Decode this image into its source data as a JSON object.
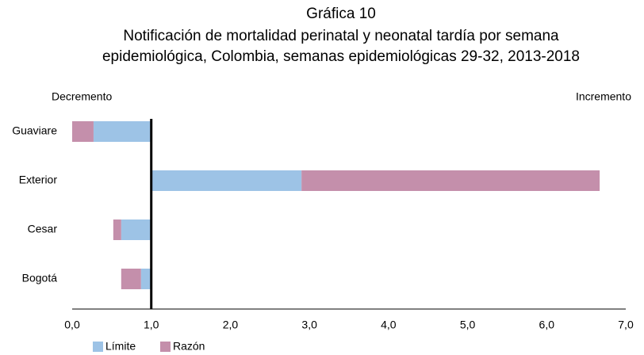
{
  "chart_data": {
    "type": "bar",
    "title": "Gráfica 10",
    "subtitle": [
      "Notificación de mortalidad perinatal y neonatal tardía por semana",
      "epidemiológica, Colombia, semanas epidemiológicas 29-32, 2013-2018"
    ],
    "annotations": [
      "Decremento",
      "Incremento"
    ],
    "categories": [
      "Guaviare",
      "Exterior",
      "Cesar",
      "Bogotá"
    ],
    "series": [
      {
        "name": "Límite",
        "color": "#9dc3e6",
        "values": [
          0.27,
          2.9,
          0.62,
          0.87
        ]
      },
      {
        "name": "Razón",
        "color": "#c48fab",
        "values": [
          0.0,
          6.67,
          0.52,
          0.62
        ]
      }
    ],
    "baseline": 1,
    "xlim": [
      0,
      7
    ],
    "xticks": [
      {
        "value": 0,
        "label": "0,0"
      },
      {
        "value": 1,
        "label": "1,0"
      },
      {
        "value": 2,
        "label": "2,0"
      },
      {
        "value": 3,
        "label": "3,0"
      },
      {
        "value": 4,
        "label": "4,0"
      },
      {
        "value": 5,
        "label": "5,0"
      },
      {
        "value": 6,
        "label": "6,0"
      },
      {
        "value": 7,
        "label": "7,0"
      }
    ],
    "grid": false
  }
}
